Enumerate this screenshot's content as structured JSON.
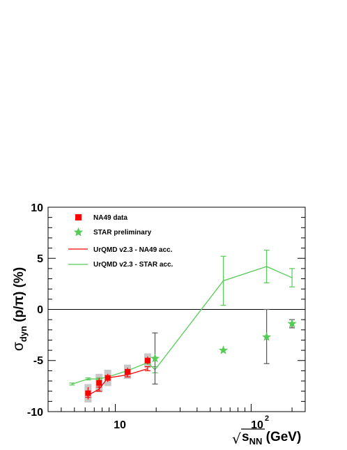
{
  "chart_data": {
    "type": "scatter",
    "x_scale": "log",
    "xlim": [
      3.2,
      250
    ],
    "ylim": [
      -10,
      10
    ],
    "grid": false,
    "legend_placement": "top-left",
    "ylabel": {
      "sym": "σ",
      "sub": "dyn",
      "body": " (p/π) (%)"
    },
    "xlabel": {
      "radical": "√",
      "main": "s",
      "sub": "NN",
      "unit": " (GeV)"
    },
    "y_ticks": [
      "-10",
      "-5",
      "0",
      "5",
      "10"
    ],
    "x_tick_labels": {
      "t10": "10",
      "t100_base": "10",
      "t100_exp": "2"
    },
    "legend": {
      "na49": "NA49 data",
      "star": "STAR preliminary",
      "urqmd_na49": "UrQMD v2.3 - NA49 acc.",
      "urqmd_star": "UrQMD v2.3 - STAR acc."
    },
    "colors": {
      "na49": "#ff0000",
      "star": "#55cc55",
      "urqmd_na49": "#ff0000",
      "urqmd_star": "#55cc55",
      "sys_band": "#c8c8c8"
    },
    "series": [
      {
        "name": "NA49 data",
        "marker": "square",
        "x": [
          6.3,
          7.6,
          8.8,
          12.3,
          17.3
        ],
        "y": [
          -8.2,
          -7.2,
          -6.7,
          -6.1,
          -5.0
        ],
        "err": [
          0.6,
          0.5,
          0.4,
          0.4,
          0.4
        ],
        "sys": [
          0.9,
          0.9,
          0.8,
          0.7,
          0.7
        ]
      },
      {
        "name": "STAR preliminary",
        "marker": "star",
        "x": [
          19.6,
          62.4,
          130,
          200
        ],
        "y": [
          -4.8,
          -4.0,
          -2.7,
          -1.4
        ],
        "err_lo": [
          2.5,
          0,
          2.6,
          0.4
        ],
        "err_hi": [
          2.5,
          0,
          2.7,
          0.4
        ]
      },
      {
        "name": "UrQMD v2.3 - NA49 acc.",
        "line": true,
        "x": [
          6.3,
          7.6,
          8.8,
          12.3,
          17.3
        ],
        "y": [
          -8.4,
          -7.8,
          -6.7,
          -6.4,
          -5.8
        ],
        "err": [
          0.2,
          0.2,
          0.2,
          0.2,
          0.2
        ]
      },
      {
        "name": "UrQMD v2.3 - STAR acc.",
        "line": true,
        "x": [
          4.8,
          6.3,
          7.6,
          8.8,
          12.3,
          17.3,
          19.6,
          62.4,
          130,
          200
        ],
        "y": [
          -7.3,
          -6.8,
          -6.8,
          -6.6,
          -6.0,
          -5.2,
          -5.9,
          2.8,
          4.2,
          3.1
        ],
        "err": [
          0.1,
          0.1,
          0.1,
          0.1,
          0.1,
          0.1,
          0.3,
          2.4,
          1.6,
          0.9
        ]
      }
    ]
  }
}
